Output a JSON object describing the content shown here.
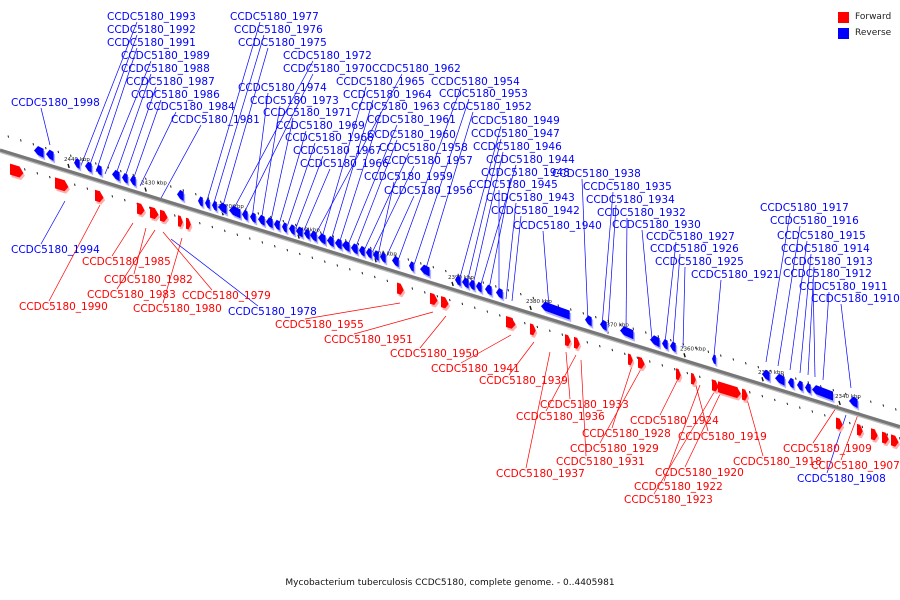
{
  "caption": "Mycobacterium tuberculosis CCDC5180, complete genome. - 0..4405981",
  "legend": [
    {
      "label": "Forward",
      "color": "#ff0000"
    },
    {
      "label": "Reverse",
      "color": "#0000ff"
    }
  ],
  "colors": {
    "forward": "#ff0000",
    "reverse": "#0000ff",
    "backbone": "#777777"
  },
  "ticks": [
    "2440 kbp",
    "2430 kbp",
    "2420 kbp",
    "2410 kbp",
    "2400 kbp",
    "2390 kbp",
    "2380 kbp",
    "2370 kbp",
    "2360 kbp",
    "2350 kbp",
    "2340 kbp"
  ],
  "reverse_labels": [
    "CCDC5180_1993",
    "CCDC5180_1992",
    "CCDC5180_1991",
    "CCDC5180_1989",
    "CCDC5180_1988",
    "CCDC5180_1987",
    "CCDC5180_1986",
    "CCDC5180_1984",
    "CCDC5180_1981",
    "CCDC5180_1998",
    "CCDC5180_1977",
    "CCDC5180_1976",
    "CCDC5180_1975",
    "CCDC5180_1972",
    "CCDC5180_1970",
    "CCDC5180_1974",
    "CCDC5180_1973",
    "CCDC5180_1971",
    "CCDC5180_1969",
    "CCDC5180_1968",
    "CCDC5180_1967",
    "CCDC5180_1966",
    "CCDC5180_1962",
    "CCDC5180_1965",
    "CCDC5180_1964",
    "CCDC5180_1963",
    "CCDC5180_1961",
    "CCDC5180_1960",
    "CCDC5180_1958",
    "CCDC5180_1957",
    "CCDC5180_1959",
    "CCDC5180_1956",
    "CCDC5180_1954",
    "CCDC5180_1953",
    "CCDC5180_1952",
    "CCDC5180_1949",
    "CCDC5180_1947",
    "CCDC5180_1946",
    "CCDC5180_1944",
    "CCDC5180_1948",
    "CCDC5180_1945",
    "CCDC5180_1943",
    "CCDC5180_1942",
    "CCDC5180_1940",
    "CCDC5180_1938",
    "CCDC5180_1935",
    "CCDC5180_1934",
    "CCDC5180_1932",
    "CCDC5180_1930",
    "CCDC5180_1927",
    "CCDC5180_1926",
    "CCDC5180_1925",
    "CCDC5180_1921",
    "CCDC5180_1917",
    "CCDC5180_1916",
    "CCDC5180_1915",
    "CCDC5180_1914",
    "CCDC5180_1913",
    "CCDC5180_1912",
    "CCDC5180_1911",
    "CCDC5180_1910",
    "CCDC5180_1994",
    "CCDC5180_1978",
    "CCDC5180_1908"
  ],
  "forward_labels": [
    "CCDC5180_1985",
    "CCDC5180_1982",
    "CCDC5180_1983",
    "CCDC5180_1990",
    "CCDC5180_1979",
    "CCDC5180_1980",
    "CCDC5180_1955",
    "CCDC5180_1951",
    "CCDC5180_1950",
    "CCDC5180_1941",
    "CCDC5180_1939",
    "CCDC5180_1933",
    "CCDC5180_1936",
    "CCDC5180_1928",
    "CCDC5180_1929",
    "CCDC5180_1931",
    "CCDC5180_1937",
    "CCDC5180_1924",
    "CCDC5180_1919",
    "CCDC5180_1918",
    "CCDC5180_1920",
    "CCDC5180_1922",
    "CCDC5180_1923",
    "CCDC5180_1909",
    "CCDC5180_1907"
  ]
}
